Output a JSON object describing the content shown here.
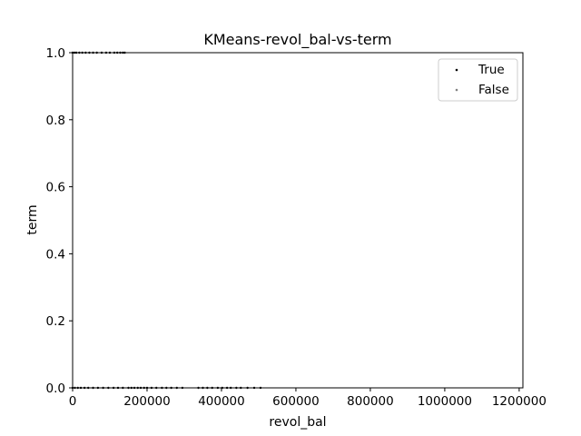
{
  "chart_data": {
    "type": "scatter",
    "title": "KMeans-revol_bal-vs-term",
    "xlabel": "revol_bal",
    "ylabel": "term",
    "xlim": [
      0,
      1210000
    ],
    "ylim": [
      0,
      1
    ],
    "x_ticks": [
      0,
      200000,
      400000,
      600000,
      800000,
      1000000,
      1200000
    ],
    "x_tick_labels": [
      "0",
      "200000",
      "400000",
      "600000",
      "800000",
      "1000000",
      "1200000"
    ],
    "y_ticks": [
      0.0,
      0.2,
      0.4,
      0.6,
      0.8,
      1.0
    ],
    "y_tick_labels": [
      "0.0",
      "0.2",
      "0.4",
      "0.6",
      "0.8",
      "1.0"
    ],
    "grid": false,
    "legend_position": "top-right",
    "series": [
      {
        "name": "True",
        "color": "#000000",
        "points": [
          [
            0,
            1
          ],
          [
            5000,
            1
          ],
          [
            10000,
            1
          ],
          [
            18000,
            1
          ],
          [
            26000,
            1
          ],
          [
            35000,
            1
          ],
          [
            45000,
            1
          ],
          [
            55000,
            1
          ],
          [
            65000,
            1
          ],
          [
            78000,
            1
          ],
          [
            90000,
            1
          ],
          [
            100000,
            1
          ],
          [
            112000,
            1
          ],
          [
            120000,
            1
          ],
          [
            128000,
            1
          ],
          [
            135000,
            1
          ],
          [
            140000,
            1
          ],
          [
            0,
            0
          ],
          [
            6000,
            0
          ],
          [
            14000,
            0
          ],
          [
            22000,
            0
          ],
          [
            32000,
            0
          ],
          [
            42000,
            0
          ],
          [
            55000,
            0
          ],
          [
            68000,
            0
          ],
          [
            82000,
            0
          ],
          [
            96000,
            0
          ],
          [
            110000,
            0
          ],
          [
            122000,
            0
          ],
          [
            135000,
            0
          ],
          [
            150000,
            0
          ],
          [
            158000,
            0
          ],
          [
            166000,
            0
          ],
          [
            175000,
            0
          ],
          [
            183000,
            0
          ],
          [
            192000,
            0
          ],
          [
            200000,
            0
          ],
          [
            212000,
            0
          ],
          [
            225000,
            0
          ],
          [
            240000,
            0
          ],
          [
            252000,
            0
          ],
          [
            265000,
            0
          ],
          [
            280000,
            0
          ],
          [
            295000,
            0
          ],
          [
            338000,
            0
          ],
          [
            350000,
            0
          ],
          [
            362000,
            0
          ],
          [
            375000,
            0
          ],
          [
            390000,
            0
          ],
          [
            402000,
            0
          ],
          [
            415000,
            0
          ],
          [
            425000,
            0
          ],
          [
            440000,
            0
          ],
          [
            452000,
            0
          ],
          [
            470000,
            0
          ],
          [
            488000,
            0
          ],
          [
            505000,
            0
          ]
        ]
      },
      {
        "name": "False",
        "color": "#808080",
        "points": []
      }
    ]
  }
}
